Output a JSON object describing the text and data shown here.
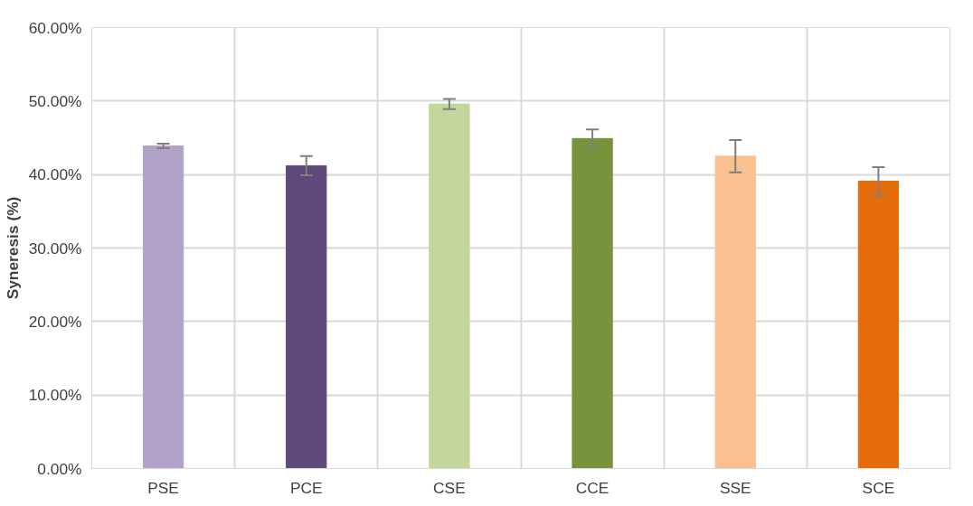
{
  "chart_data": {
    "type": "bar",
    "ylabel": "Syneresis (%)",
    "categories": [
      "PSE",
      "PCE",
      "CSE",
      "CCE",
      "SSE",
      "SCE"
    ],
    "values": [
      43.9,
      41.2,
      49.6,
      44.9,
      42.5,
      39.1
    ],
    "errors": [
      0.3,
      1.3,
      0.7,
      1.25,
      2.2,
      1.9
    ],
    "colors": [
      "#b2a2c7",
      "#5f497a",
      "#c3d69b",
      "#77933c",
      "#fac090",
      "#e46c0a"
    ],
    "ylim": [
      0,
      60
    ],
    "yticks": [
      {
        "value": 0,
        "label": "0.00%"
      },
      {
        "value": 10,
        "label": "10.00%"
      },
      {
        "value": 20,
        "label": "20.00%"
      },
      {
        "value": 30,
        "label": "30.00%"
      },
      {
        "value": 40,
        "label": "40.00%"
      },
      {
        "value": 50,
        "label": "50.00%"
      },
      {
        "value": 60,
        "label": "60.00%"
      }
    ],
    "grid": true
  }
}
